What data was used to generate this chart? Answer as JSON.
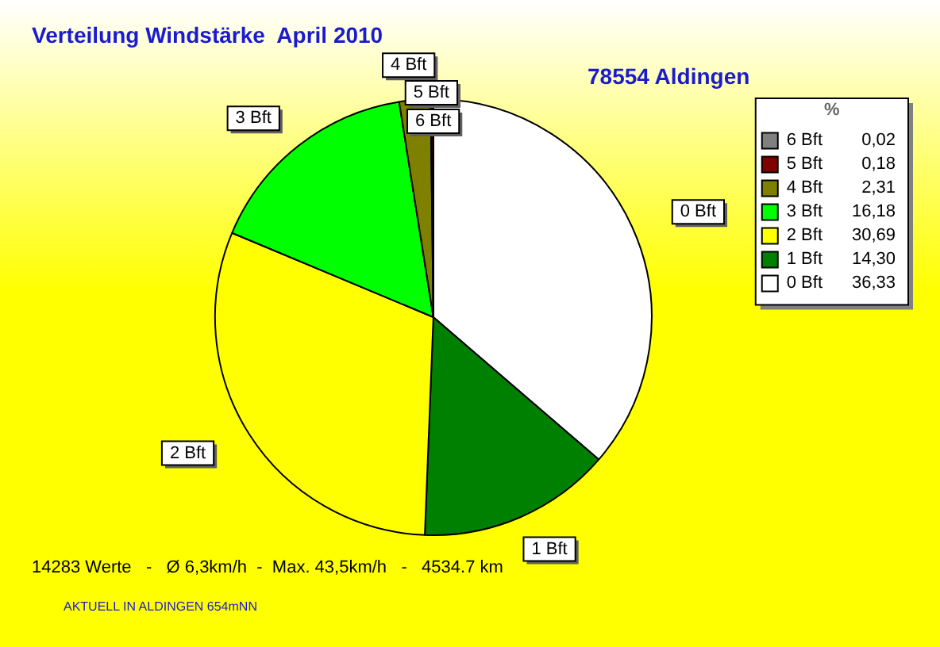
{
  "chart_data": {
    "type": "pie",
    "title": "Verteilung Windstärke  April 2010",
    "subtitle": "78554 Aldingen",
    "categories": [
      "0 Bft",
      "1 Bft",
      "2 Bft",
      "3 Bft",
      "4 Bft",
      "5 Bft",
      "6 Bft"
    ],
    "values": [
      36.33,
      14.3,
      30.69,
      16.18,
      2.31,
      0.18,
      0.02
    ],
    "value_labels": [
      "36,33",
      "14,30",
      "30,69",
      "16,18",
      "2,31",
      "0,18",
      "0,02"
    ],
    "colors": [
      "#ffffff",
      "#008000",
      "#ffff00",
      "#00ff00",
      "#808000",
      "#800000",
      "#808080"
    ],
    "legend": "right",
    "legend_title": "%",
    "annotations": [
      "14283 Werte   -   Ø 6,3km/h  -  Max. 43,5km/h   -   4534.7 km",
      "AKTUELL IN ALDINGEN 654mNN"
    ]
  }
}
